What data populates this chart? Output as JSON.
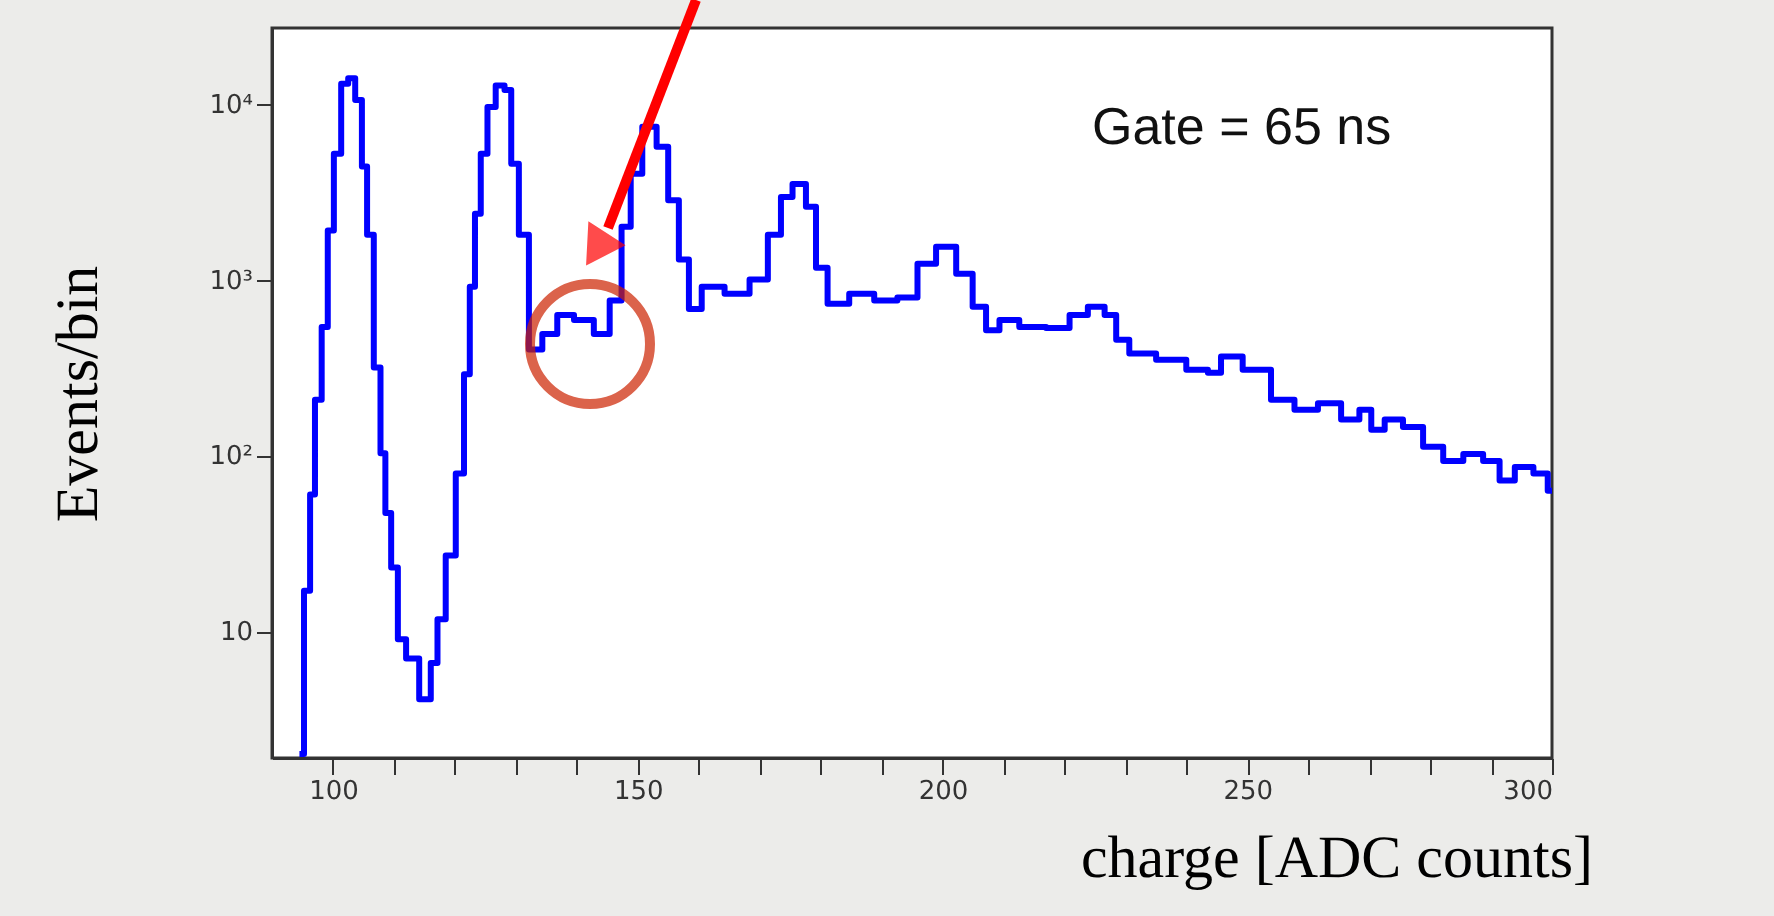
{
  "chart_data": {
    "type": "step",
    "xlabel": "charge [ADC counts]",
    "ylabel": "Events/bin",
    "annotations": [
      "Gate = 65 ns"
    ],
    "x": [
      94.5,
      96,
      96.5,
      97.6,
      98.7,
      99.6,
      100.7,
      102,
      103,
      104.3,
      105.2,
      106,
      107.4,
      108.2,
      109,
      110.1,
      111.2,
      112.8,
      115.5,
      116.6,
      117.7,
      119.3,
      121,
      122,
      122.9,
      123.7,
      124.8,
      125.9,
      127.5,
      128.8,
      129.7,
      131.3,
      133,
      135.7,
      137.9,
      141.2,
      144.4,
      146.4,
      148.3,
      149.4,
      152.1,
      154.1,
      155.9,
      157.6,
      159.2,
      161.8,
      166.7,
      170,
      172.7,
      174.3,
      176.5,
      178.7,
      179.8,
      182.5,
      186.9,
      190.7,
      194.5,
      197.3,
      200.6,
      203.9,
      206,
      208.3,
      210.4,
      214.8,
      219.2,
      222.5,
      225.2,
      228,
      229,
      232.3,
      237.8,
      242.2,
      244.9,
      246.5,
      252,
      255.8,
      259.7,
      263.5,
      267.3,
      269.5,
      271.2,
      273.9,
      277.2,
      280.5,
      283.8,
      287.1,
      290.3,
      292.5,
      295.3,
      298.6,
      300
    ],
    "series": [
      {
        "color": "#0000ff",
        "values": [
          2,
          17,
          60,
          207,
          537,
          1900,
          5200,
          13000,
          14000,
          10500,
          4400,
          1800,
          316,
          103,
          47,
          23,
          9,
          7,
          4.1,
          6.6,
          11.7,
          27,
          79,
          290,
          910,
          2370,
          5200,
          9600,
          12700,
          12000,
          4560,
          1800,
          400,
          490,
          630,
          590,
          490,
          760,
          2000,
          4000,
          7400,
          5700,
          2830,
          1300,
          680,
          910,
          830,
          1000,
          1800,
          2950,
          3500,
          2600,
          1170,
          730,
          830,
          760,
          790,
          1230,
          1540,
          1080,
          700,
          515,
          590,
          537,
          530,
          630,
          700,
          630,
          455,
          380,
          350,
          307,
          295,
          365,
          307,
          207,
          182,
          198,
          160,
          182,
          140,
          160,
          145,
          112,
          93,
          102,
          93,
          72,
          86,
          79,
          63
        ]
      }
    ],
    "log": "y",
    "xlim": [
      90,
      300
    ],
    "ylim": [
      1.9,
      27000
    ],
    "xticks": [
      100,
      {
        "value": 110,
        "label": null
      },
      {
        "value": 120,
        "label": null
      },
      {
        "value": 130,
        "label": null
      },
      {
        "value": 140,
        "label": null
      },
      150,
      {
        "value": 160,
        "label": null
      },
      {
        "value": 170,
        "label": null
      },
      {
        "value": 180,
        "label": null
      },
      {
        "value": 190,
        "label": null
      },
      200,
      {
        "value": 210,
        "label": null
      },
      {
        "value": 220,
        "label": null
      },
      {
        "value": 230,
        "label": null
      },
      {
        "value": 240,
        "label": null
      },
      250,
      {
        "value": 260,
        "label": null
      },
      {
        "value": 270,
        "label": null
      },
      {
        "value": 280,
        "label": null
      },
      {
        "value": 290,
        "label": null
      },
      300
    ],
    "yticks": [
      10,
      {
        "value": 100,
        "label": "10²"
      },
      {
        "value": 1000,
        "label": "10³"
      },
      {
        "value": 10000,
        "label": "10⁴"
      }
    ],
    "grid": false
  }
}
